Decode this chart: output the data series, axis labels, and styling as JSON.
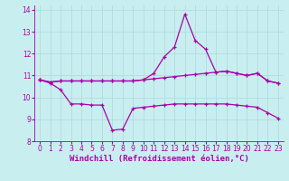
{
  "background_color": "#c8eef0",
  "line_color": "#aa00aa",
  "grid_color": "#b0dde0",
  "xlabel": "Windchill (Refroidissement éolien,°C)",
  "xlabel_fontsize": 6.5,
  "tick_fontsize": 5.5,
  "xlim": [
    -0.5,
    23.5
  ],
  "ylim": [
    8,
    14.2
  ],
  "yticks": [
    8,
    9,
    10,
    11,
    12,
    13,
    14
  ],
  "xticks": [
    0,
    1,
    2,
    3,
    4,
    5,
    6,
    7,
    8,
    9,
    10,
    11,
    12,
    13,
    14,
    15,
    16,
    17,
    18,
    19,
    20,
    21,
    22,
    23
  ],
  "series_flat_x": [
    0,
    1,
    2,
    3,
    4,
    5,
    6,
    7,
    8,
    9,
    10,
    11,
    12,
    13,
    14,
    15,
    16,
    17,
    18,
    19,
    20,
    21,
    22,
    23
  ],
  "series_flat_y": [
    10.8,
    10.7,
    10.75,
    10.75,
    10.75,
    10.75,
    10.75,
    10.75,
    10.75,
    10.75,
    10.8,
    10.85,
    10.9,
    10.95,
    11.0,
    11.05,
    11.1,
    11.15,
    11.2,
    11.1,
    11.0,
    11.1,
    10.75,
    10.65
  ],
  "series_spike_x": [
    0,
    1,
    2,
    3,
    4,
    5,
    6,
    7,
    8,
    9,
    10,
    11,
    12,
    13,
    14,
    15,
    16,
    17,
    18,
    19,
    20,
    21,
    22,
    23
  ],
  "series_spike_y": [
    10.8,
    10.7,
    10.75,
    10.75,
    10.75,
    10.75,
    10.75,
    10.75,
    10.75,
    10.75,
    10.8,
    11.1,
    11.85,
    12.3,
    13.8,
    12.6,
    12.2,
    11.15,
    11.2,
    11.1,
    11.0,
    11.1,
    10.75,
    10.65
  ],
  "series_low_x": [
    0,
    1,
    2,
    3,
    4,
    5,
    6,
    7,
    8,
    9,
    10,
    11,
    12,
    13,
    14,
    15,
    16,
    17,
    18,
    19,
    20,
    21,
    22,
    23
  ],
  "series_low_y": [
    10.8,
    10.65,
    10.35,
    9.7,
    9.7,
    9.65,
    9.65,
    8.5,
    8.55,
    9.5,
    9.55,
    9.6,
    9.65,
    9.7,
    9.7,
    9.7,
    9.7,
    9.7,
    9.7,
    9.65,
    9.6,
    9.55,
    9.3,
    9.05
  ]
}
